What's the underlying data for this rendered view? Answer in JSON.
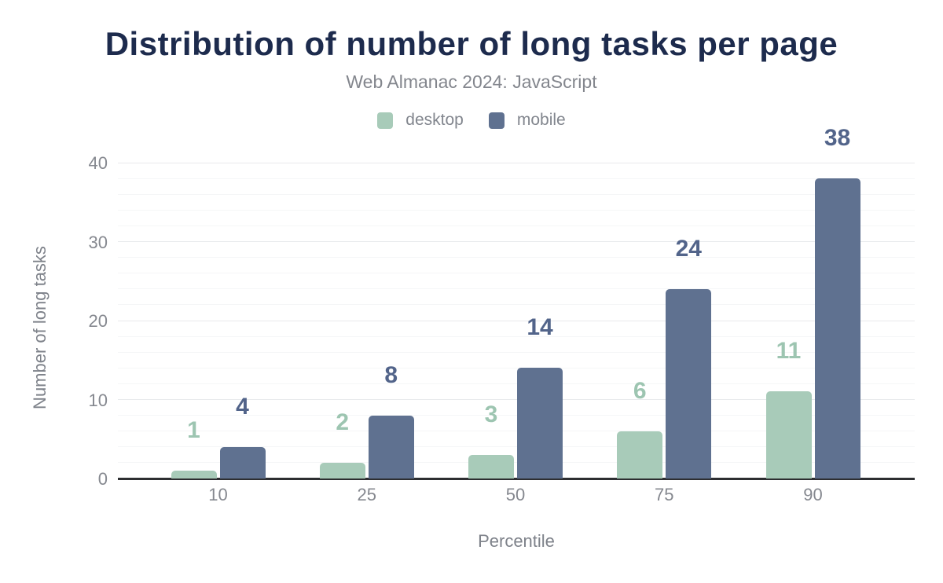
{
  "chart_data": {
    "type": "bar",
    "title": "Distribution of number of long tasks per page",
    "subtitle": "Web Almanac 2024: JavaScript",
    "categories": [
      "10",
      "25",
      "50",
      "75",
      "90"
    ],
    "series": [
      {
        "name": "desktop",
        "color": "#a8cbb9",
        "label_color": "#9dc5b1",
        "values": [
          1,
          2,
          3,
          6,
          11
        ]
      },
      {
        "name": "mobile",
        "color": "#5f7190",
        "label_color": "#52648a",
        "values": [
          4,
          8,
          14,
          24,
          38
        ]
      }
    ],
    "xlabel": "Percentile",
    "ylabel": "Number of long tasks",
    "ylim": [
      0,
      40
    ],
    "yticks": [
      0,
      10,
      20,
      30,
      40
    ],
    "minor_grid_step": 2,
    "major_grid_step": 10,
    "grid": true,
    "legend_position": "top"
  },
  "colors": {
    "title": "#1d2b4d",
    "subtitle": "#83868d",
    "tick_text": "#85888f",
    "axis_title_text": "#7e828a",
    "major_grid": "#e8eaec",
    "minor_grid": "#f5f6f7",
    "axis_line": "#2d2e31",
    "background": "#ffffff"
  }
}
